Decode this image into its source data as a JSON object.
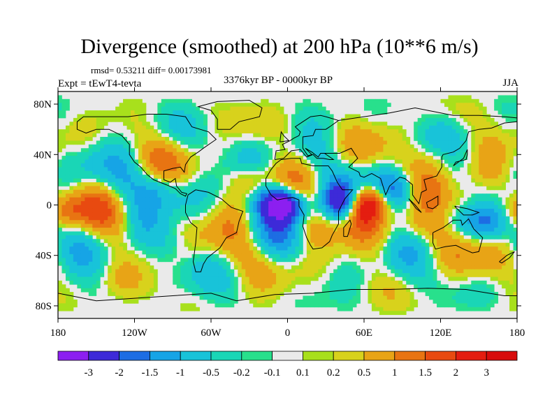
{
  "header": {
    "title": "Divergence (smoothed) at 200 hPa (10**6 m/s)",
    "stats": "rmsd= 0.53211 diff= 0.00173981",
    "period": "3376kyr BP - 0000kyr BP",
    "experiment": "Expt = tEwT4-tevta",
    "season": "JJA"
  },
  "chart_data": {
    "type": "heatmap",
    "projection": "cylindrical-equidistant",
    "xlim": [
      -180,
      180
    ],
    "ylim": [
      -90,
      90
    ],
    "x_ticks": [
      {
        "value": -180,
        "label": "180"
      },
      {
        "value": -120,
        "label": "120W"
      },
      {
        "value": -60,
        "label": "60W"
      },
      {
        "value": 0,
        "label": "0"
      },
      {
        "value": 60,
        "label": "60E"
      },
      {
        "value": 120,
        "label": "120E"
      },
      {
        "value": 180,
        "label": "180"
      }
    ],
    "y_ticks": [
      {
        "value": 80,
        "label": "80N"
      },
      {
        "value": 40,
        "label": "40N"
      },
      {
        "value": 0,
        "label": "0"
      },
      {
        "value": -40,
        "label": "40S"
      },
      {
        "value": -80,
        "label": "80S"
      }
    ],
    "colorbar": {
      "boundaries": [
        "-3",
        "-2",
        "-1.5",
        "-1",
        "-0.5",
        "-0.2",
        "-0.1",
        "0.1",
        "0.2",
        "0.5",
        "1",
        "1.5",
        "2",
        "3"
      ],
      "colors": [
        "#8c1ff0",
        "#3d2ad8",
        "#1d6de3",
        "#16a4e6",
        "#18c3d9",
        "#1ad6b6",
        "#28e08c",
        "#eaeaea",
        "#a8e01c",
        "#d8d21c",
        "#e8a416",
        "#e87412",
        "#e84a10",
        "#e41d10",
        "#d80c0c"
      ]
    },
    "features": [
      {
        "lon": 0,
        "lat": 0,
        "value": -2.5
      },
      {
        "lon": -8,
        "lat": 3,
        "value": -2.2
      },
      {
        "lon": 62,
        "lat": 3,
        "value": 3.2
      },
      {
        "lon": 55,
        "lat": -8,
        "value": 1.3
      },
      {
        "lon": 42,
        "lat": 5,
        "value": -2.0
      },
      {
        "lon": 48,
        "lat": -5,
        "value": -1.5
      },
      {
        "lon": 85,
        "lat": 12,
        "value": -1.2
      },
      {
        "lon": -30,
        "lat": 20,
        "value": 1.0
      },
      {
        "lon": -175,
        "lat": -5,
        "value": 1.1
      },
      {
        "lon": 140,
        "lat": 2,
        "value": 1.0
      },
      {
        "lon": 160,
        "lat": -15,
        "value": -0.9
      },
      {
        "lon": 100,
        "lat": -18,
        "value": 0.6
      },
      {
        "lon": -90,
        "lat": -30,
        "value": -0.6
      },
      {
        "lon": -100,
        "lat": 15,
        "value": -1.0
      },
      {
        "lon": 20,
        "lat": -22,
        "value": 0.7
      },
      {
        "lon": 120,
        "lat": 40,
        "value": 0.6
      }
    ]
  }
}
